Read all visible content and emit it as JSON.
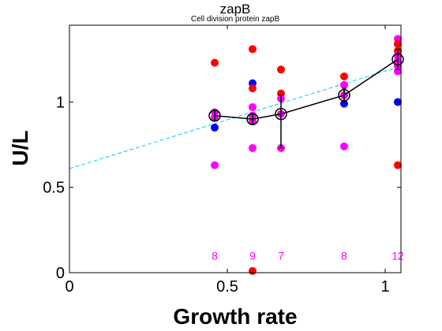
{
  "chart_data": {
    "type": "scatter",
    "title": "zapB",
    "subtitle": "Cell division protein zapB",
    "xlabel": "Growth rate",
    "ylabel": "U/L",
    "xlim": [
      0,
      1.05
    ],
    "ylim": [
      0,
      1.45
    ],
    "xticks": [
      {
        "value": 0,
        "label": "0"
      },
      {
        "value": 0.5,
        "label": "0.5"
      },
      {
        "value": 1,
        "label": "1"
      }
    ],
    "yticks": [
      {
        "value": 0,
        "label": "0"
      },
      {
        "value": 0.5,
        "label": "0.5"
      },
      {
        "value": 1,
        "label": "1"
      }
    ],
    "grid": false,
    "colors": {
      "red": "#ff0000",
      "blue": "#0000ff",
      "magenta": "#ff00ff",
      "fit": "#00ccff",
      "mean": "#000000"
    },
    "points": [
      {
        "x": 0.46,
        "y": 1.23,
        "color": "red"
      },
      {
        "x": 0.46,
        "y": 0.94,
        "color": "magenta"
      },
      {
        "x": 0.46,
        "y": 0.91,
        "color": "magenta"
      },
      {
        "x": 0.46,
        "y": 0.85,
        "color": "blue"
      },
      {
        "x": 0.46,
        "y": 0.63,
        "color": "magenta"
      },
      {
        "x": 0.58,
        "y": 1.31,
        "color": "red"
      },
      {
        "x": 0.58,
        "y": 1.11,
        "color": "blue"
      },
      {
        "x": 0.58,
        "y": 1.08,
        "color": "red"
      },
      {
        "x": 0.58,
        "y": 0.97,
        "color": "magenta"
      },
      {
        "x": 0.58,
        "y": 0.92,
        "color": "magenta"
      },
      {
        "x": 0.58,
        "y": 0.89,
        "color": "magenta"
      },
      {
        "x": 0.58,
        "y": 0.73,
        "color": "magenta"
      },
      {
        "x": 0.58,
        "y": 0.01,
        "color": "red"
      },
      {
        "x": 0.67,
        "y": 1.19,
        "color": "red"
      },
      {
        "x": 0.67,
        "y": 1.05,
        "color": "red"
      },
      {
        "x": 0.67,
        "y": 1.02,
        "color": "magenta"
      },
      {
        "x": 0.67,
        "y": 0.93,
        "color": "magenta"
      },
      {
        "x": 0.67,
        "y": 0.73,
        "color": "magenta"
      },
      {
        "x": 0.87,
        "y": 1.15,
        "color": "red"
      },
      {
        "x": 0.87,
        "y": 1.1,
        "color": "magenta"
      },
      {
        "x": 0.87,
        "y": 1.04,
        "color": "magenta"
      },
      {
        "x": 0.87,
        "y": 0.99,
        "color": "blue"
      },
      {
        "x": 0.87,
        "y": 0.74,
        "color": "magenta"
      },
      {
        "x": 1.04,
        "y": 1.37,
        "color": "magenta"
      },
      {
        "x": 1.04,
        "y": 1.34,
        "color": "red"
      },
      {
        "x": 1.04,
        "y": 1.3,
        "color": "red"
      },
      {
        "x": 1.04,
        "y": 1.27,
        "color": "magenta"
      },
      {
        "x": 1.04,
        "y": 1.24,
        "color": "magenta"
      },
      {
        "x": 1.04,
        "y": 1.21,
        "color": "magenta"
      },
      {
        "x": 1.04,
        "y": 1.18,
        "color": "magenta"
      },
      {
        "x": 1.04,
        "y": 1.0,
        "color": "blue"
      },
      {
        "x": 1.04,
        "y": 0.63,
        "color": "red"
      }
    ],
    "means": [
      {
        "x": 0.46,
        "y": 0.92,
        "err_low": 0.89,
        "err_high": 0.95
      },
      {
        "x": 0.58,
        "y": 0.9,
        "err_low": 0.87,
        "err_high": 0.93
      },
      {
        "x": 0.67,
        "y": 0.93,
        "err_low": 0.73,
        "err_high": 1.04
      },
      {
        "x": 0.87,
        "y": 1.04,
        "err_low": 1.0,
        "err_high": 1.08
      },
      {
        "x": 1.04,
        "y": 1.25,
        "err_low": 1.19,
        "err_high": 1.31
      }
    ],
    "fit_line": {
      "x": [
        0,
        1.05
      ],
      "y": [
        0.61,
        1.21
      ],
      "style": "dashed"
    },
    "counts": [
      {
        "x": 0.46,
        "label": "8"
      },
      {
        "x": 0.58,
        "label": "9"
      },
      {
        "x": 0.67,
        "label": "7"
      },
      {
        "x": 0.87,
        "label": "8"
      },
      {
        "x": 1.04,
        "label": "12"
      }
    ],
    "count_y": 0.1
  }
}
